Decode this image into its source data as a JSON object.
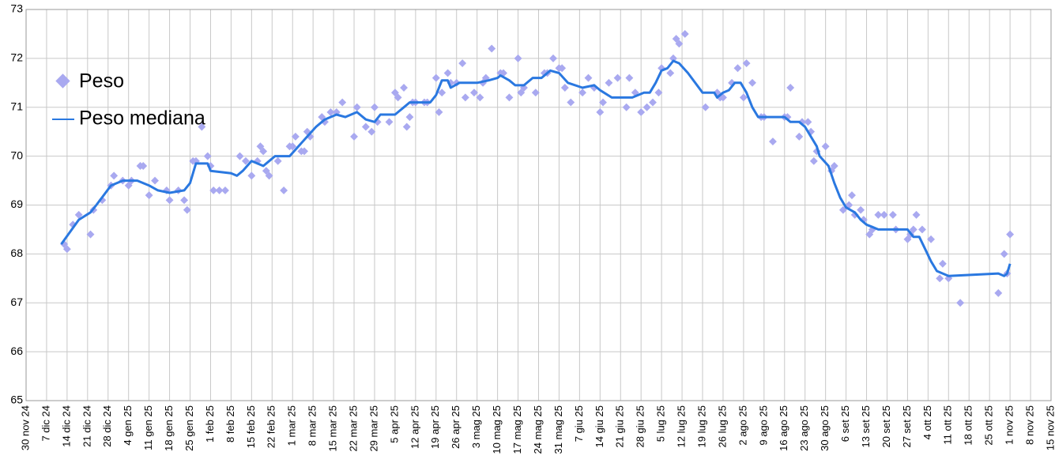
{
  "chart_data": {
    "type": "line",
    "xlim": [
      "2024-11-30",
      "2025-11-15"
    ],
    "ylim": [
      65,
      73
    ],
    "yticks": [
      65,
      66,
      67,
      68,
      69,
      70,
      71,
      72,
      73
    ],
    "xticks": [
      {
        "value": "2024-11-30",
        "label": "30 nov 24"
      },
      {
        "value": "2024-12-07",
        "label": "7 dic 24"
      },
      {
        "value": "2024-12-14",
        "label": "14 dic 24"
      },
      {
        "value": "2024-12-21",
        "label": "21 dic 24"
      },
      {
        "value": "2024-12-28",
        "label": "28 dic 24"
      },
      {
        "value": "2025-01-04",
        "label": "4 gen 25"
      },
      {
        "value": "2025-01-11",
        "label": "11 gen 25"
      },
      {
        "value": "2025-01-18",
        "label": "18 gen 25"
      },
      {
        "value": "2025-01-25",
        "label": "25 gen 25"
      },
      {
        "value": "2025-02-01",
        "label": "1 feb 25"
      },
      {
        "value": "2025-02-08",
        "label": "8 feb 25"
      },
      {
        "value": "2025-02-15",
        "label": "15 feb 25"
      },
      {
        "value": "2025-02-22",
        "label": "22 feb 25"
      },
      {
        "value": "2025-03-01",
        "label": "1 mar 25"
      },
      {
        "value": "2025-03-08",
        "label": "8 mar 25"
      },
      {
        "value": "2025-03-15",
        "label": "15 mar 25"
      },
      {
        "value": "2025-03-22",
        "label": "22 mar 25"
      },
      {
        "value": "2025-03-29",
        "label": "29 mar 25"
      },
      {
        "value": "2025-04-05",
        "label": "5 apr 25"
      },
      {
        "value": "2025-04-12",
        "label": "12 apr 25"
      },
      {
        "value": "2025-04-19",
        "label": "19 apr 25"
      },
      {
        "value": "2025-04-26",
        "label": "26 apr 25"
      },
      {
        "value": "2025-05-03",
        "label": "3 mag 25"
      },
      {
        "value": "2025-05-10",
        "label": "10 mag 25"
      },
      {
        "value": "2025-05-17",
        "label": "17 mag 25"
      },
      {
        "value": "2025-05-24",
        "label": "24 mag 25"
      },
      {
        "value": "2025-05-31",
        "label": "31 mag 25"
      },
      {
        "value": "2025-06-07",
        "label": "7 giu 25"
      },
      {
        "value": "2025-06-14",
        "label": "14 giu 25"
      },
      {
        "value": "2025-06-21",
        "label": "21 giu 25"
      },
      {
        "value": "2025-06-28",
        "label": "28 giu 25"
      },
      {
        "value": "2025-07-05",
        "label": "5 lug 25"
      },
      {
        "value": "2025-07-12",
        "label": "12 lug 25"
      },
      {
        "value": "2025-07-19",
        "label": "19 lug 25"
      },
      {
        "value": "2025-07-26",
        "label": "26 lug 25"
      },
      {
        "value": "2025-08-02",
        "label": "2 ago 25"
      },
      {
        "value": "2025-08-09",
        "label": "9 ago 25"
      },
      {
        "value": "2025-08-16",
        "label": "16 ago 25"
      },
      {
        "value": "2025-08-23",
        "label": "23 ago 25"
      },
      {
        "value": "2025-08-30",
        "label": "30 ago 25"
      },
      {
        "value": "2025-09-06",
        "label": "6 set 25"
      },
      {
        "value": "2025-09-13",
        "label": "13 set 25"
      },
      {
        "value": "2025-09-20",
        "label": "20 set 25"
      },
      {
        "value": "2025-09-27",
        "label": "27 set 25"
      },
      {
        "value": "2025-10-04",
        "label": "4 ott 25"
      },
      {
        "value": "2025-10-11",
        "label": "11 ott 25"
      },
      {
        "value": "2025-10-18",
        "label": "18 ott 25"
      },
      {
        "value": "2025-10-25",
        "label": "25 ott 25"
      },
      {
        "value": "2025-11-01",
        "label": "1 nov 25"
      },
      {
        "value": "2025-11-08",
        "label": "8 nov 25"
      },
      {
        "value": "2025-11-15",
        "label": "15 nov 25"
      }
    ],
    "grid": true,
    "legend": "upper left",
    "series": [
      {
        "name": "Peso",
        "color": "#a9a9f0",
        "style": "markers",
        "x": [
          "2024-12-13",
          "2024-12-14",
          "2024-12-16",
          "2024-12-18",
          "2024-12-22",
          "2024-12-23",
          "2024-12-26",
          "2024-12-29",
          "2024-12-30",
          "2025-01-02",
          "2025-01-04",
          "2025-01-05",
          "2025-01-08",
          "2025-01-09",
          "2025-01-11",
          "2025-01-13",
          "2025-01-17",
          "2025-01-18",
          "2025-01-21",
          "2025-01-23",
          "2025-01-24",
          "2025-01-26",
          "2025-01-27",
          "2025-01-29",
          "2025-01-31",
          "2025-02-01",
          "2025-02-02",
          "2025-02-04",
          "2025-02-06",
          "2025-02-11",
          "2025-02-13",
          "2025-02-15",
          "2025-02-17",
          "2025-02-18",
          "2025-02-19",
          "2025-02-20",
          "2025-02-21",
          "2025-02-24",
          "2025-02-26",
          "2025-02-28",
          "2025-03-01",
          "2025-03-02",
          "2025-03-04",
          "2025-03-05",
          "2025-03-06",
          "2025-03-07",
          "2025-03-11",
          "2025-03-12",
          "2025-03-14",
          "2025-03-16",
          "2025-03-18",
          "2025-03-22",
          "2025-03-23",
          "2025-03-26",
          "2025-03-28",
          "2025-03-29",
          "2025-03-30",
          "2025-04-03",
          "2025-04-05",
          "2025-04-06",
          "2025-04-08",
          "2025-04-09",
          "2025-04-10",
          "2025-04-11",
          "2025-04-12",
          "2025-04-15",
          "2025-04-16",
          "2025-04-19",
          "2025-04-20",
          "2025-04-21",
          "2025-04-23",
          "2025-04-24",
          "2025-04-26",
          "2025-04-28",
          "2025-04-29",
          "2025-05-02",
          "2025-05-04",
          "2025-05-05",
          "2025-05-06",
          "2025-05-08",
          "2025-05-11",
          "2025-05-12",
          "2025-05-14",
          "2025-05-17",
          "2025-05-18",
          "2025-05-19",
          "2025-05-23",
          "2025-05-26",
          "2025-05-27",
          "2025-05-29",
          "2025-05-31",
          "2025-06-01",
          "2025-06-02",
          "2025-06-04",
          "2025-06-08",
          "2025-06-10",
          "2025-06-12",
          "2025-06-14",
          "2025-06-15",
          "2025-06-17",
          "2025-06-20",
          "2025-06-23",
          "2025-06-24",
          "2025-06-26",
          "2025-06-28",
          "2025-06-30",
          "2025-07-02",
          "2025-07-04",
          "2025-07-05",
          "2025-07-08",
          "2025-07-09",
          "2025-07-10",
          "2025-07-11",
          "2025-07-13",
          "2025-07-20",
          "2025-07-24",
          "2025-07-25",
          "2025-07-26",
          "2025-07-29",
          "2025-07-31",
          "2025-08-02",
          "2025-08-03",
          "2025-08-05",
          "2025-08-08",
          "2025-08-09",
          "2025-08-12",
          "2025-08-16",
          "2025-08-17",
          "2025-08-18",
          "2025-08-21",
          "2025-08-22",
          "2025-08-24",
          "2025-08-25",
          "2025-08-26",
          "2025-08-27",
          "2025-08-30",
          "2025-09-01",
          "2025-09-02",
          "2025-09-05",
          "2025-09-07",
          "2025-09-08",
          "2025-09-09",
          "2025-09-11",
          "2025-09-12",
          "2025-09-14",
          "2025-09-15",
          "2025-09-17",
          "2025-09-19",
          "2025-09-22",
          "2025-09-23",
          "2025-09-27",
          "2025-09-28",
          "2025-09-29",
          "2025-09-30",
          "2025-10-02",
          "2025-10-05",
          "2025-10-08",
          "2025-10-09",
          "2025-10-11",
          "2025-10-15",
          "2025-10-28",
          "2025-10-30",
          "2025-10-31",
          "2025-11-01"
        ],
        "values": [
          68.2,
          68.1,
          68.6,
          68.8,
          68.4,
          68.9,
          69.1,
          69.4,
          69.6,
          69.5,
          69.4,
          69.5,
          69.8,
          69.8,
          69.2,
          69.5,
          69.3,
          69.1,
          69.3,
          69.1,
          68.9,
          69.9,
          69.9,
          70.6,
          70.0,
          69.8,
          69.3,
          69.3,
          69.3,
          70.0,
          69.9,
          69.6,
          69.9,
          70.2,
          70.1,
          69.7,
          69.6,
          69.9,
          69.3,
          70.2,
          70.2,
          70.4,
          70.1,
          70.1,
          70.5,
          70.4,
          70.8,
          70.7,
          70.9,
          70.9,
          71.1,
          70.4,
          71.0,
          70.6,
          70.5,
          71.0,
          70.7,
          70.7,
          71.3,
          71.2,
          71.4,
          70.6,
          70.8,
          71.1,
          71.1,
          71.1,
          71.1,
          71.6,
          70.9,
          71.3,
          71.7,
          71.5,
          71.5,
          71.9,
          71.2,
          71.3,
          71.2,
          71.5,
          71.6,
          72.2,
          71.7,
          71.7,
          71.2,
          72.0,
          71.3,
          71.4,
          71.3,
          71.7,
          71.7,
          72.0,
          71.8,
          71.8,
          71.4,
          71.1,
          71.3,
          71.6,
          71.4,
          70.9,
          71.1,
          71.5,
          71.6,
          71.0,
          71.6,
          71.3,
          70.9,
          71.0,
          71.1,
          71.3,
          71.8,
          71.7,
          72.0,
          72.4,
          72.3,
          72.5,
          71.0,
          71.3,
          71.2,
          71.2,
          71.5,
          71.8,
          71.2,
          71.9,
          71.5,
          70.8,
          70.8,
          70.3,
          70.8,
          70.8,
          71.4,
          70.4,
          70.7,
          70.7,
          70.5,
          69.9,
          70.1,
          70.2,
          69.7,
          69.8,
          68.9,
          69.0,
          69.2,
          68.8,
          68.9,
          68.7,
          68.4,
          68.5,
          68.8,
          68.8,
          68.8,
          68.5,
          68.3,
          68.4,
          68.5,
          68.8,
          68.5,
          68.3,
          67.5,
          67.8,
          67.5,
          67.0,
          67.2,
          68.0,
          67.6,
          68.4
        ]
      },
      {
        "name": "Peso mediana",
        "color": "#2a78e0",
        "style": "line",
        "x": [
          "2024-12-12",
          "2024-12-18",
          "2024-12-22",
          "2024-12-24",
          "2024-12-29",
          "2025-01-02",
          "2025-01-07",
          "2025-01-11",
          "2025-01-14",
          "2025-01-18",
          "2025-01-23",
          "2025-01-25",
          "2025-01-27",
          "2025-01-31",
          "2025-02-01",
          "2025-02-08",
          "2025-02-10",
          "2025-02-12",
          "2025-02-15",
          "2025-02-17",
          "2025-02-19",
          "2025-02-21",
          "2025-02-23",
          "2025-02-28",
          "2025-03-03",
          "2025-03-06",
          "2025-03-09",
          "2025-03-12",
          "2025-03-16",
          "2025-03-19",
          "2025-03-23",
          "2025-03-26",
          "2025-03-29",
          "2025-03-31",
          "2025-04-05",
          "2025-04-08",
          "2025-04-10",
          "2025-04-17",
          "2025-04-19",
          "2025-04-21",
          "2025-04-23",
          "2025-04-24",
          "2025-04-27",
          "2025-05-03",
          "2025-05-07",
          "2025-05-10",
          "2025-05-11",
          "2025-05-14",
          "2025-05-16",
          "2025-05-19",
          "2025-05-22",
          "2025-05-25",
          "2025-05-28",
          "2025-05-31",
          "2025-06-03",
          "2025-06-08",
          "2025-06-12",
          "2025-06-14",
          "2025-06-18",
          "2025-06-25",
          "2025-06-29",
          "2025-07-01",
          "2025-07-03",
          "2025-07-05",
          "2025-07-07",
          "2025-07-09",
          "2025-07-11",
          "2025-07-14",
          "2025-07-19",
          "2025-07-23",
          "2025-07-24",
          "2025-07-26",
          "2025-07-28",
          "2025-07-30",
          "2025-08-01",
          "2025-08-03",
          "2025-08-05",
          "2025-08-07",
          "2025-08-16",
          "2025-08-18",
          "2025-08-21",
          "2025-08-23",
          "2025-08-25",
          "2025-08-27",
          "2025-08-28",
          "2025-08-31",
          "2025-09-02",
          "2025-09-04",
          "2025-09-06",
          "2025-09-09",
          "2025-09-11",
          "2025-09-13",
          "2025-09-15",
          "2025-09-17",
          "2025-09-27",
          "2025-09-29",
          "2025-10-01",
          "2025-10-03",
          "2025-10-05",
          "2025-10-07",
          "2025-10-11",
          "2025-10-28",
          "2025-10-30",
          "2025-10-31",
          "2025-11-01"
        ],
        "values": [
          68.2,
          68.7,
          68.85,
          69.0,
          69.4,
          69.5,
          69.5,
          69.4,
          69.3,
          69.25,
          69.3,
          69.45,
          69.85,
          69.85,
          69.7,
          69.65,
          69.6,
          69.7,
          69.9,
          69.85,
          69.8,
          69.9,
          70.0,
          70.0,
          70.2,
          70.4,
          70.6,
          70.75,
          70.85,
          70.8,
          70.9,
          70.75,
          70.7,
          70.85,
          70.85,
          71.0,
          71.1,
          71.1,
          71.25,
          71.55,
          71.55,
          71.4,
          71.5,
          71.5,
          71.55,
          71.6,
          71.65,
          71.55,
          71.45,
          71.45,
          71.6,
          71.6,
          71.75,
          71.7,
          71.5,
          71.4,
          71.45,
          71.35,
          71.2,
          71.2,
          71.3,
          71.3,
          71.5,
          71.75,
          71.8,
          71.95,
          71.9,
          71.7,
          71.3,
          71.3,
          71.2,
          71.3,
          71.35,
          71.5,
          71.5,
          71.3,
          71.0,
          70.8,
          70.8,
          70.7,
          70.7,
          70.6,
          70.4,
          70.2,
          70.0,
          69.8,
          69.45,
          69.15,
          68.95,
          68.85,
          68.7,
          68.6,
          68.55,
          68.5,
          68.5,
          68.35,
          68.35,
          68.1,
          67.85,
          67.65,
          67.55,
          67.6,
          67.55,
          67.6,
          67.8
        ]
      }
    ]
  }
}
